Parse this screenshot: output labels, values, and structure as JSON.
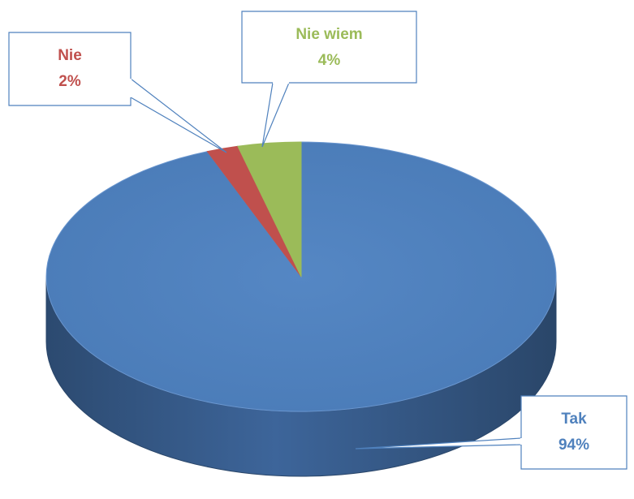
{
  "chart_data": {
    "type": "pie",
    "title": "",
    "three_d": true,
    "legend": "none",
    "slices": [
      {
        "label": "Tak",
        "value": 94,
        "display": "94%",
        "color": "#4f81bd",
        "side_color": "#385d8a",
        "label_color": "#4f81bd"
      },
      {
        "label": "Nie",
        "value": 2,
        "display": "2%",
        "color": "#c0504d",
        "side_color": "#943634",
        "label_color": "#c0504d"
      },
      {
        "label": "Nie wiem",
        "value": 4,
        "display": "4%",
        "color": "#9bbb59",
        "side_color": "#76923c",
        "label_color": "#9bbb59"
      }
    ]
  }
}
